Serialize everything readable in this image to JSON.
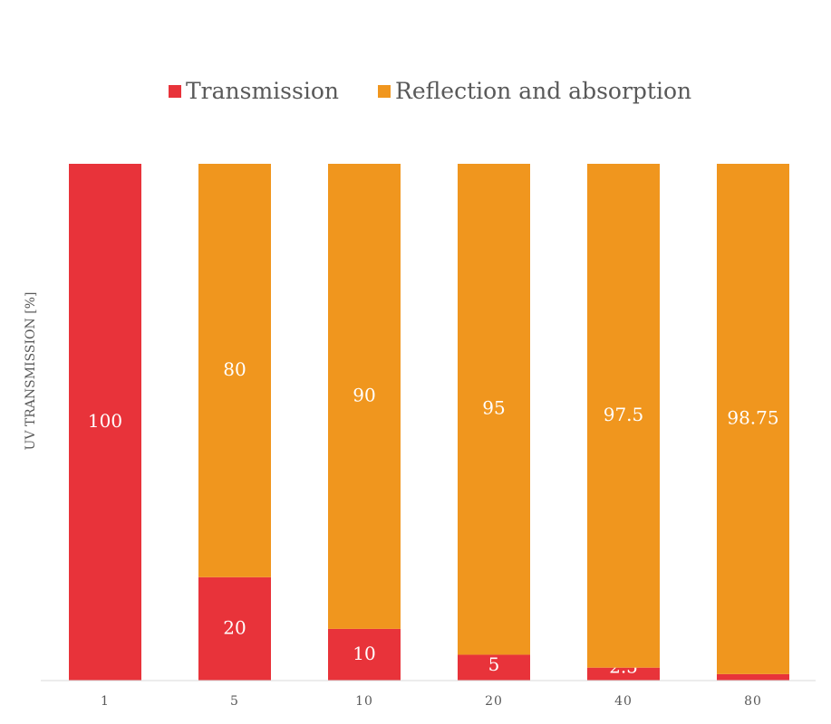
{
  "chart_data": {
    "type": "bar",
    "stacked": true,
    "categories": [
      "1",
      "5",
      "10",
      "20",
      "40",
      "80"
    ],
    "series": [
      {
        "name": "Transmission",
        "color": "#e8333a",
        "values": [
          100,
          20,
          10,
          5,
          2.5,
          1.25
        ]
      },
      {
        "name": "Reflection and absorption",
        "color": "#f0961e",
        "values": [
          0,
          80,
          90,
          95,
          97.5,
          98.75
        ]
      }
    ],
    "data_labels": [
      [
        "100",
        "20",
        "10",
        "5",
        "2.5",
        "1.25"
      ],
      [
        "",
        "80",
        "90",
        "95",
        "97.5",
        "98.75"
      ]
    ],
    "title": "",
    "xlabel": "",
    "ylabel": "UV TRANSMISSION [%]",
    "ylim": [
      0,
      100
    ],
    "grid": false,
    "legend": "top"
  }
}
